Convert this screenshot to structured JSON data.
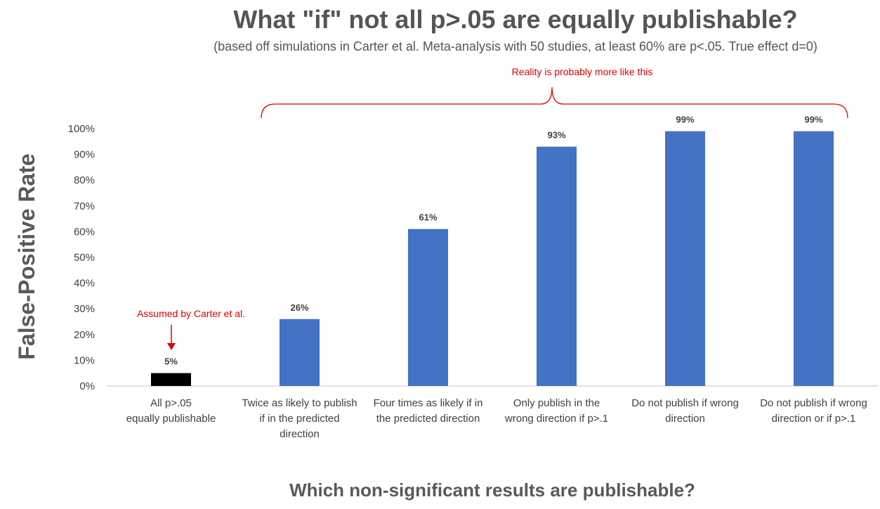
{
  "chart_data": {
    "type": "bar",
    "title": "What \"if\" not all p>.05 are equally publishable?",
    "subtitle": "(based off simulations in Carter et al. Meta-analysis with 50 studies, at least 60% are p<.05. True effect d=0)",
    "xlabel": "Which non-significant results are publishable?",
    "ylabel": "False-Positive Rate",
    "ylim": [
      0,
      100
    ],
    "yticks": [
      "0%",
      "10%",
      "20%",
      "30%",
      "40%",
      "50%",
      "60%",
      "70%",
      "80%",
      "90%",
      "100%"
    ],
    "categories": [
      [
        "All p>.05",
        "equally publishable"
      ],
      [
        "Twice as likely to publish",
        "if in the predicted",
        "direction"
      ],
      [
        "Four times as likely if in",
        "the predicted direction"
      ],
      [
        "Only publish in the",
        "wrong direction if p>.1"
      ],
      [
        "Do not publish if wrong",
        "direction"
      ],
      [
        "Do not publish if wrong",
        "direction or if p>.1"
      ]
    ],
    "values": [
      5,
      26,
      61,
      93,
      99,
      99
    ],
    "data_labels": [
      "5%",
      "26%",
      "61%",
      "93%",
      "99%",
      "99%"
    ],
    "bar_colors": [
      "#000000",
      "#4472c4",
      "#4472c4",
      "#4472c4",
      "#4472c4",
      "#4472c4"
    ],
    "grid": false,
    "annotations": {
      "assumed": "Assumed by Carter et al.",
      "reality": "Reality is probably  more like this"
    },
    "annotation_color": "#e00000"
  }
}
